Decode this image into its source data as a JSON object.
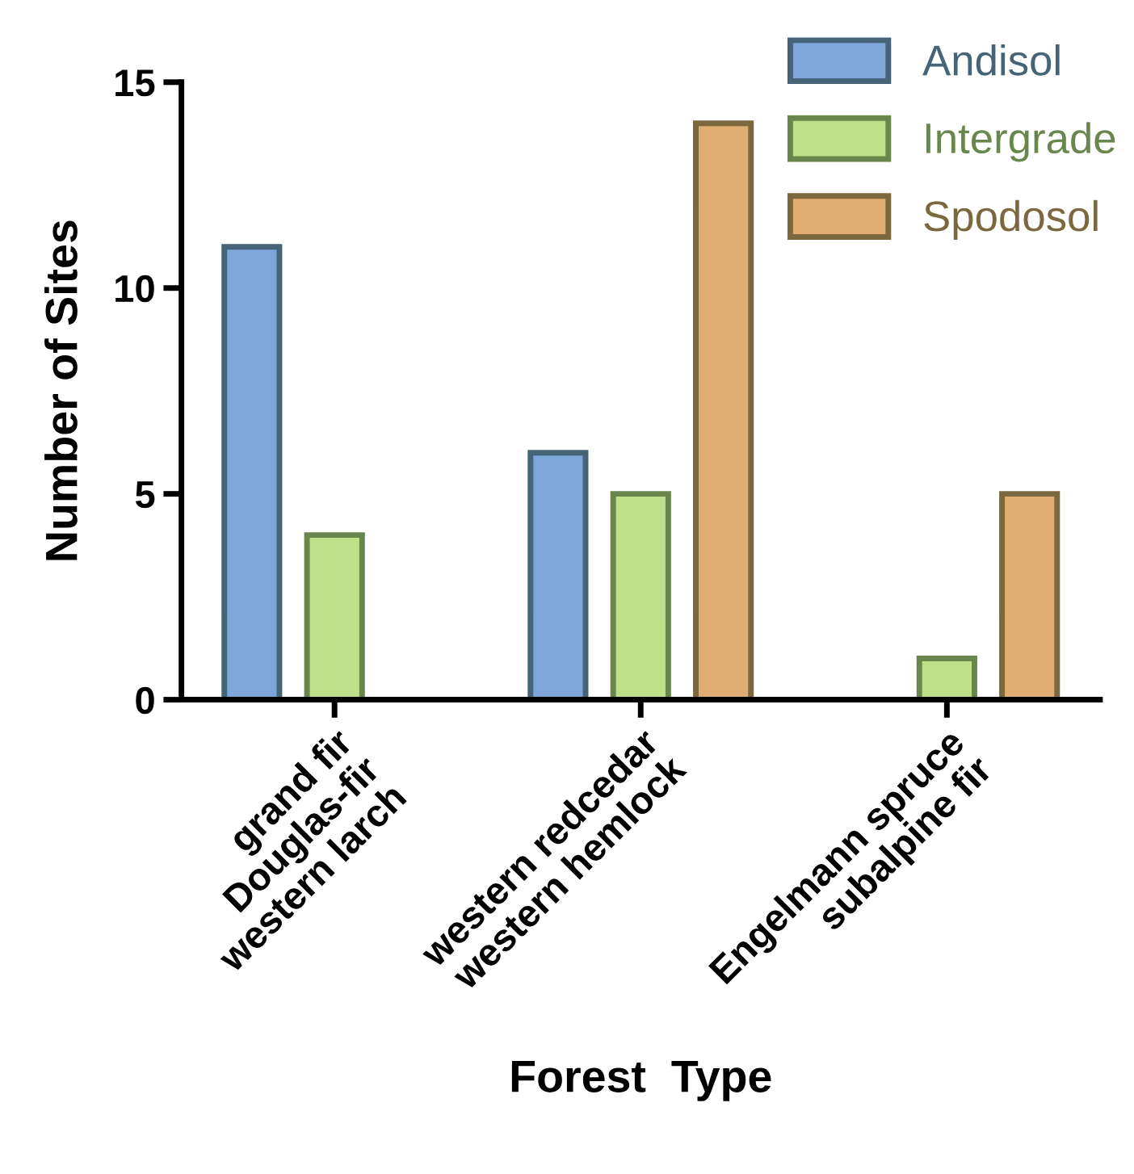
{
  "chart_data": {
    "type": "bar",
    "xlabel": "Forest  Type",
    "ylabel": "Number of Sites",
    "categories": [
      "grand fir\nDouglas-fir\nwestern larch",
      "western redcedar\nwestern hemlock",
      "Engelmann spruce\nsubalpine fir"
    ],
    "series": [
      {
        "name": "Andisol",
        "color": "#7fa6d9",
        "values": [
          11,
          6,
          null
        ]
      },
      {
        "name": "Intergrade",
        "color": "#bfe08a",
        "values": [
          4,
          5,
          1
        ]
      },
      {
        "name": "Spodosol",
        "color": "#e0ad72",
        "values": [
          null,
          14,
          5
        ]
      }
    ],
    "ylim": [
      0,
      15
    ],
    "yticks": [
      0,
      5,
      10,
      15
    ],
    "grid": false,
    "legend": "top right"
  }
}
